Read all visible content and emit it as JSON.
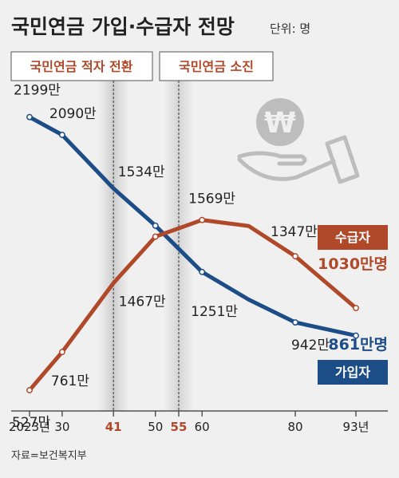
{
  "header": {
    "title": "국민연금 가입·수급자 전망",
    "unit": "단위: 명"
  },
  "events": [
    {
      "label": "국민연금 적자 전환",
      "year": 41
    },
    {
      "label": "국민연금 소진",
      "year": 55
    }
  ],
  "source": "자료=보건복지부",
  "colors": {
    "subscribers": "#1d4d86",
    "recipients": "#b0492a",
    "background": "#f0f0f0"
  },
  "decoration": {
    "icon": "won-coin-hand-icon"
  },
  "chart_data": {
    "type": "line",
    "x_ticks": [
      {
        "value": 2023,
        "label": "2023년",
        "highlight": false
      },
      {
        "value": 2030,
        "label": "30",
        "highlight": false
      },
      {
        "value": 2041,
        "label": "41",
        "highlight": true
      },
      {
        "value": 2050,
        "label": "50",
        "highlight": false
      },
      {
        "value": 2055,
        "label": "55",
        "highlight": true
      },
      {
        "value": 2060,
        "label": "60",
        "highlight": false
      },
      {
        "value": 2080,
        "label": "80",
        "highlight": false
      },
      {
        "value": 2093,
        "label": "93년",
        "highlight": false
      }
    ],
    "xlim": [
      2023,
      2093
    ],
    "ylim": [
      400,
      2300
    ],
    "grid": false,
    "series": [
      {
        "key": "subscribers",
        "name": "가입자",
        "end_label": "861만명",
        "color": "#1d4d86",
        "points": [
          {
            "x": 2023,
            "y": 2199,
            "label": "2199만"
          },
          {
            "x": 2030,
            "y": 2090,
            "label": "2090만"
          },
          {
            "x": 2041,
            "y": 1762
          },
          {
            "x": 2050,
            "y": 1534,
            "label": "1534만"
          },
          {
            "x": 2060,
            "y": 1251,
            "label": "1251만"
          },
          {
            "x": 2070,
            "y": 1082
          },
          {
            "x": 2080,
            "y": 942,
            "label": "942만"
          },
          {
            "x": 2093,
            "y": 861
          }
        ]
      },
      {
        "key": "recipients",
        "name": "수급자",
        "end_label": "1030만명",
        "color": "#b0492a",
        "points": [
          {
            "x": 2023,
            "y": 527,
            "label": "527만"
          },
          {
            "x": 2030,
            "y": 761,
            "label": "761만"
          },
          {
            "x": 2041,
            "y": 1183
          },
          {
            "x": 2050,
            "y": 1467,
            "label": "1467만"
          },
          {
            "x": 2060,
            "y": 1569,
            "label": "1569만"
          },
          {
            "x": 2070,
            "y": 1532
          },
          {
            "x": 2080,
            "y": 1347,
            "label": "1347만"
          },
          {
            "x": 2093,
            "y": 1030
          }
        ]
      }
    ]
  }
}
